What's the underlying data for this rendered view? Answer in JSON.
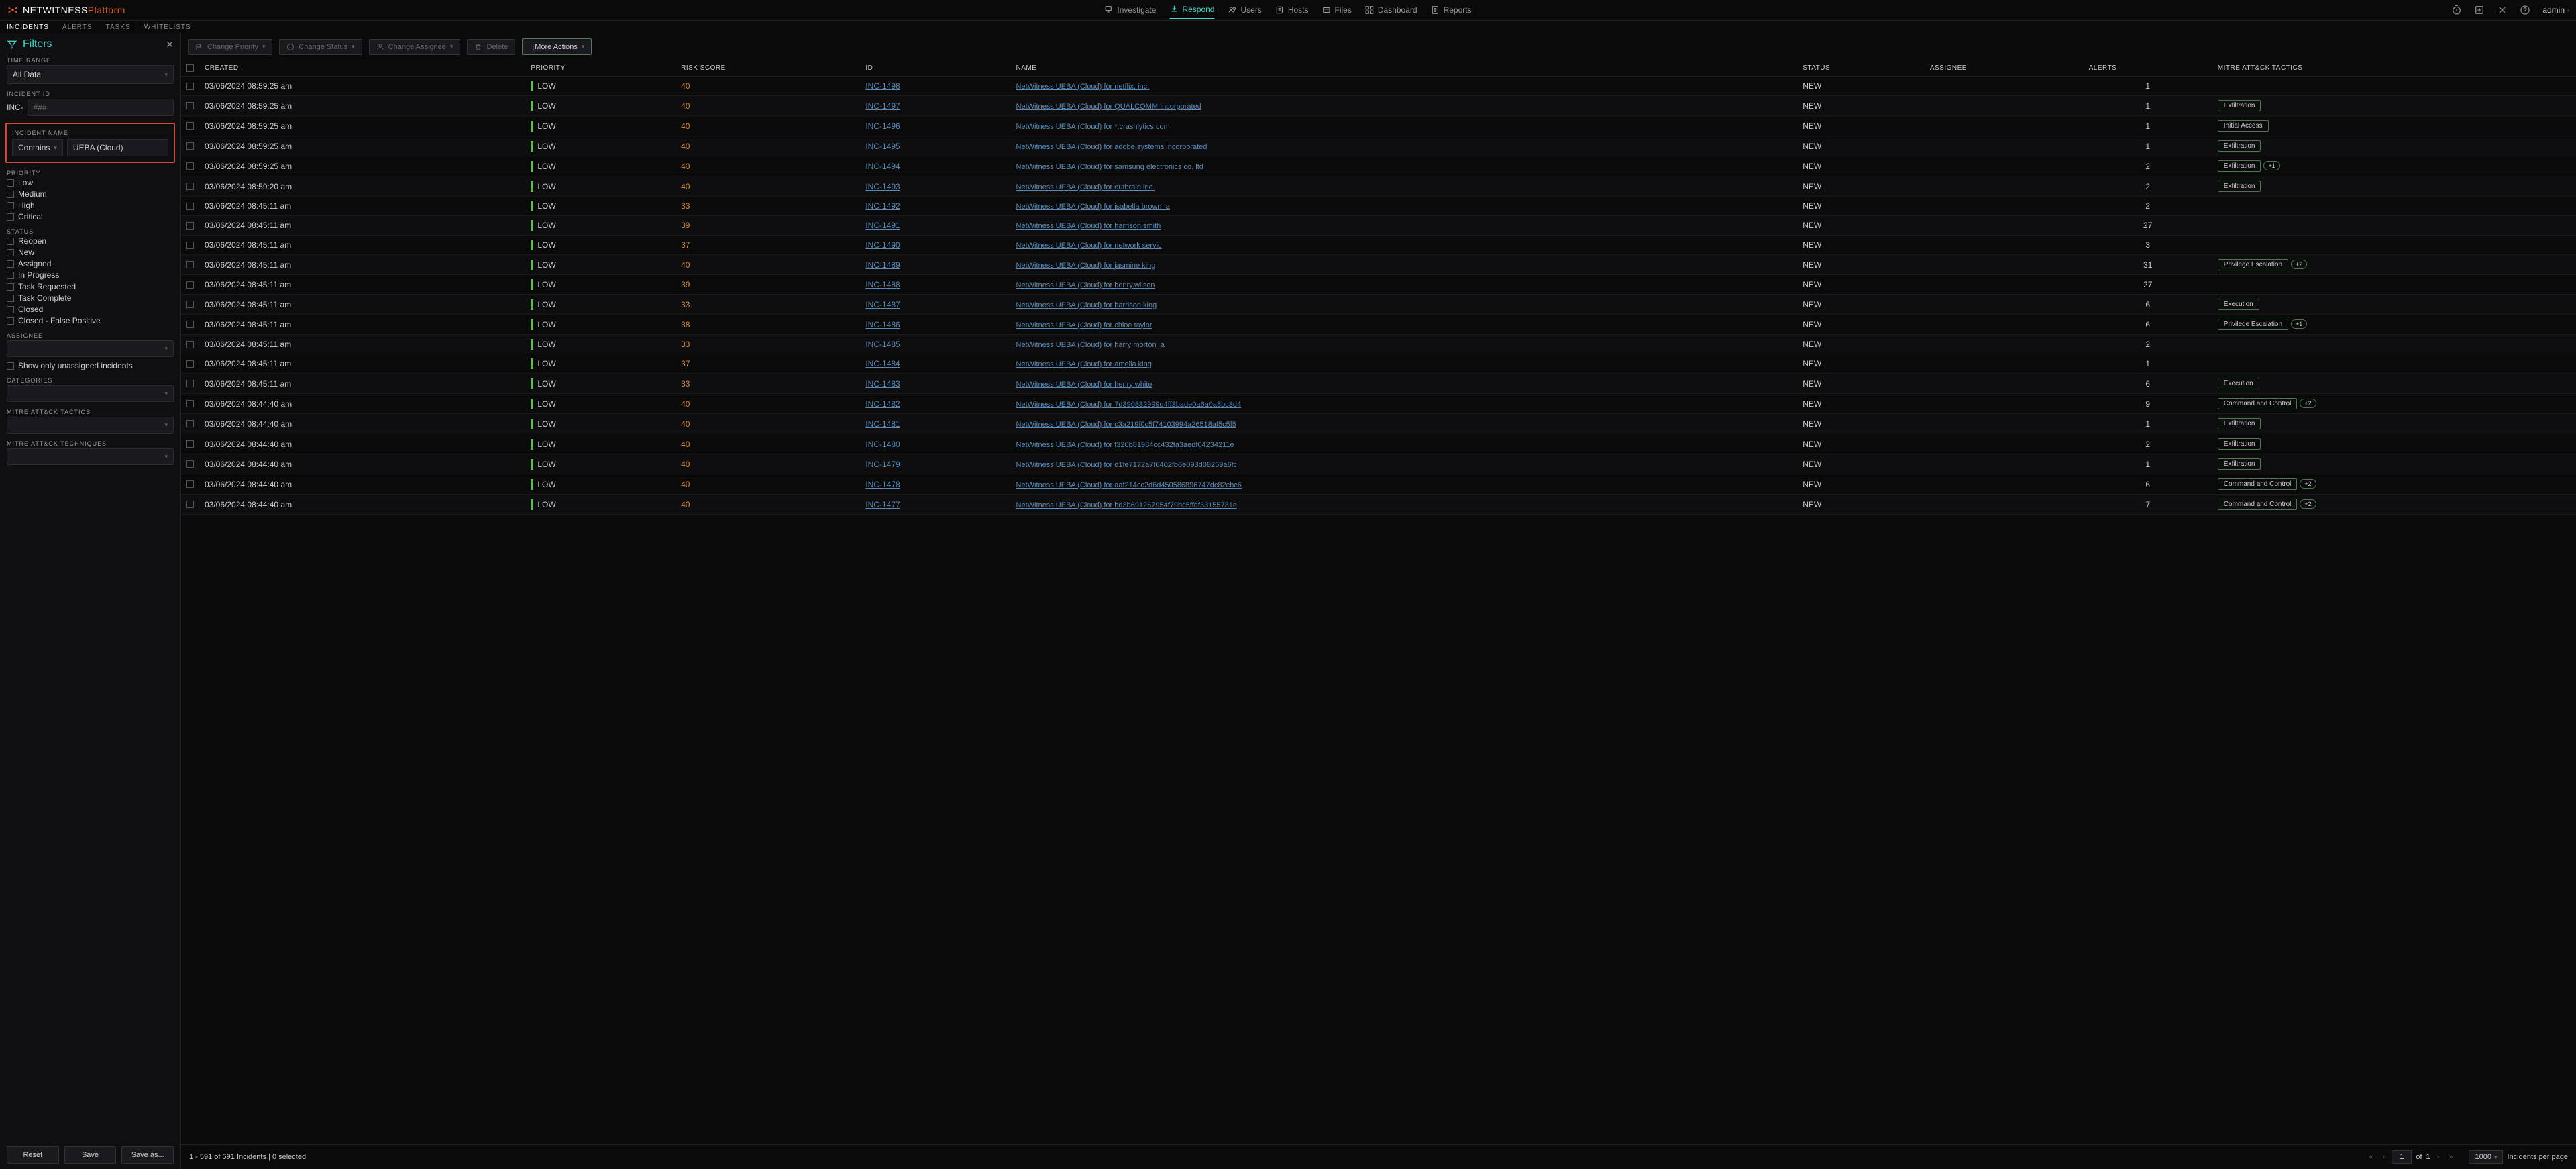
{
  "brand": {
    "net": "NETWITNESS",
    "platform": "Platform"
  },
  "main_nav": [
    {
      "label": "Investigate",
      "icon": "search"
    },
    {
      "label": "Respond",
      "icon": "respond",
      "active": true
    },
    {
      "label": "Users",
      "icon": "users"
    },
    {
      "label": "Hosts",
      "icon": "hosts"
    },
    {
      "label": "Files",
      "icon": "files"
    },
    {
      "label": "Dashboard",
      "icon": "dashboard"
    },
    {
      "label": "Reports",
      "icon": "reports"
    }
  ],
  "admin_label": "admin",
  "sub_nav": [
    {
      "label": "INCIDENTS",
      "active": true
    },
    {
      "label": "ALERTS"
    },
    {
      "label": "TASKS"
    },
    {
      "label": "WHITELISTS"
    }
  ],
  "filters": {
    "title": "Filters",
    "time_range_label": "TIME RANGE",
    "time_range_value": "All Data",
    "incident_id_label": "INCIDENT ID",
    "incident_id_prefix": "INC-",
    "incident_id_placeholder": "###",
    "incident_name_label": "INCIDENT NAME",
    "contains_label": "Contains",
    "name_value": "UEBA (Cloud)",
    "priority_label": "PRIORITY",
    "priority_options": [
      "Low",
      "Medium",
      "High",
      "Critical"
    ],
    "status_label": "STATUS",
    "status_options": [
      "Reopen",
      "New",
      "Assigned",
      "In Progress",
      "Task Requested",
      "Task Complete",
      "Closed",
      "Closed - False Positive"
    ],
    "assignee_label": "ASSIGNEE",
    "unassigned_label": "Show only unassigned incidents",
    "categories_label": "CATEGORIES",
    "mitre_tactics_label": "MITRE ATT&CK TACTICS",
    "mitre_tech_label": "MITRE ATT&CK TECHNIQUES",
    "reset": "Reset",
    "save": "Save",
    "save_as": "Save as..."
  },
  "actions": {
    "change_priority": "Change Priority",
    "change_status": "Change Status",
    "change_assignee": "Change Assignee",
    "delete": "Delete",
    "more": "More Actions"
  },
  "columns": [
    "",
    "CREATED",
    "PRIORITY",
    "RISK SCORE",
    "ID",
    "NAME",
    "STATUS",
    "ASSIGNEE",
    "ALERTS",
    "MITRE ATT&CK TACTICS"
  ],
  "rows": [
    {
      "created": "03/06/2024 08:59:25 am",
      "priority": "LOW",
      "risk": "40",
      "id": "INC-1498",
      "name": "NetWitness UEBA (Cloud) for netflix, inc.",
      "status": "NEW",
      "assignee": "",
      "alerts": "1",
      "tactic": ""
    },
    {
      "created": "03/06/2024 08:59:25 am",
      "priority": "LOW",
      "risk": "40",
      "id": "INC-1497",
      "name": "NetWitness UEBA (Cloud) for QUALCOMM Incorporated",
      "status": "NEW",
      "assignee": "",
      "alerts": "1",
      "tactic": "Exfiltration"
    },
    {
      "created": "03/06/2024 08:59:25 am",
      "priority": "LOW",
      "risk": "40",
      "id": "INC-1496",
      "name": "NetWitness UEBA (Cloud) for *.crashlytics.com",
      "status": "NEW",
      "assignee": "",
      "alerts": "1",
      "tactic": "Initial Access"
    },
    {
      "created": "03/06/2024 08:59:25 am",
      "priority": "LOW",
      "risk": "40",
      "id": "INC-1495",
      "name": "NetWitness UEBA (Cloud) for adobe systems incorporated",
      "status": "NEW",
      "assignee": "",
      "alerts": "1",
      "tactic": "Exfiltration"
    },
    {
      "created": "03/06/2024 08:59:25 am",
      "priority": "LOW",
      "risk": "40",
      "id": "INC-1494",
      "name": "NetWitness UEBA (Cloud) for samsung electronics co. ltd",
      "status": "NEW",
      "assignee": "",
      "alerts": "2",
      "tactic": "Exfiltration",
      "plus": "+1"
    },
    {
      "created": "03/06/2024 08:59:20 am",
      "priority": "LOW",
      "risk": "40",
      "id": "INC-1493",
      "name": "NetWitness UEBA (Cloud) for outbrain inc.",
      "status": "NEW",
      "assignee": "",
      "alerts": "2",
      "tactic": "Exfiltration"
    },
    {
      "created": "03/06/2024 08:45:11 am",
      "priority": "LOW",
      "risk": "33",
      "id": "INC-1492",
      "name": "NetWitness UEBA (Cloud) for isabella brown_a",
      "status": "NEW",
      "assignee": "",
      "alerts": "2",
      "tactic": ""
    },
    {
      "created": "03/06/2024 08:45:11 am",
      "priority": "LOW",
      "risk": "39",
      "id": "INC-1491",
      "name": "NetWitness UEBA (Cloud) for harrison smith",
      "status": "NEW",
      "assignee": "",
      "alerts": "27",
      "tactic": ""
    },
    {
      "created": "03/06/2024 08:45:11 am",
      "priority": "LOW",
      "risk": "37",
      "id": "INC-1490",
      "name": "NetWitness UEBA (Cloud) for network servic",
      "status": "NEW",
      "assignee": "",
      "alerts": "3",
      "tactic": ""
    },
    {
      "created": "03/06/2024 08:45:11 am",
      "priority": "LOW",
      "risk": "40",
      "id": "INC-1489",
      "name": "NetWitness UEBA (Cloud) for jasmine king",
      "status": "NEW",
      "assignee": "",
      "alerts": "31",
      "tactic": "Privilege Escalation",
      "plus": "+2"
    },
    {
      "created": "03/06/2024 08:45:11 am",
      "priority": "LOW",
      "risk": "39",
      "id": "INC-1488",
      "name": "NetWitness UEBA (Cloud) for henry.wilson",
      "status": "NEW",
      "assignee": "",
      "alerts": "27",
      "tactic": ""
    },
    {
      "created": "03/06/2024 08:45:11 am",
      "priority": "LOW",
      "risk": "33",
      "id": "INC-1487",
      "name": "NetWitness UEBA (Cloud) for harrison king",
      "status": "NEW",
      "assignee": "",
      "alerts": "6",
      "tactic": "Execution"
    },
    {
      "created": "03/06/2024 08:45:11 am",
      "priority": "LOW",
      "risk": "38",
      "id": "INC-1486",
      "name": "NetWitness UEBA (Cloud) for chloe taylor",
      "status": "NEW",
      "assignee": "",
      "alerts": "6",
      "tactic": "Privilege Escalation",
      "plus": "+1"
    },
    {
      "created": "03/06/2024 08:45:11 am",
      "priority": "LOW",
      "risk": "33",
      "id": "INC-1485",
      "name": "NetWitness UEBA (Cloud) for harry morton_a",
      "status": "NEW",
      "assignee": "",
      "alerts": "2",
      "tactic": ""
    },
    {
      "created": "03/06/2024 08:45:11 am",
      "priority": "LOW",
      "risk": "37",
      "id": "INC-1484",
      "name": "NetWitness UEBA (Cloud) for amelia.king",
      "status": "NEW",
      "assignee": "",
      "alerts": "1",
      "tactic": ""
    },
    {
      "created": "03/06/2024 08:45:11 am",
      "priority": "LOW",
      "risk": "33",
      "id": "INC-1483",
      "name": "NetWitness UEBA (Cloud) for henry white",
      "status": "NEW",
      "assignee": "",
      "alerts": "6",
      "tactic": "Execution"
    },
    {
      "created": "03/06/2024 08:44:40 am",
      "priority": "LOW",
      "risk": "40",
      "id": "INC-1482",
      "name": "NetWitness UEBA (Cloud) for 7d390832999d4ff3bade0a6a0a8bc3d4",
      "status": "NEW",
      "assignee": "",
      "alerts": "9",
      "tactic": "Command and Control",
      "plus": "+2"
    },
    {
      "created": "03/06/2024 08:44:40 am",
      "priority": "LOW",
      "risk": "40",
      "id": "INC-1481",
      "name": "NetWitness UEBA (Cloud) for c3a219f0c5f74103994a26518af5c5f5",
      "status": "NEW",
      "assignee": "",
      "alerts": "1",
      "tactic": "Exfiltration"
    },
    {
      "created": "03/06/2024 08:44:40 am",
      "priority": "LOW",
      "risk": "40",
      "id": "INC-1480",
      "name": "NetWitness UEBA (Cloud) for f320b81984cc432fa3aedf04234211e",
      "status": "NEW",
      "assignee": "",
      "alerts": "2",
      "tactic": "Exfiltration"
    },
    {
      "created": "03/06/2024 08:44:40 am",
      "priority": "LOW",
      "risk": "40",
      "id": "INC-1479",
      "name": "NetWitness UEBA (Cloud) for d1fe7172a7f6402fb6e093d08259a6fc",
      "status": "NEW",
      "assignee": "",
      "alerts": "1",
      "tactic": "Exfiltration"
    },
    {
      "created": "03/06/2024 08:44:40 am",
      "priority": "LOW",
      "risk": "40",
      "id": "INC-1478",
      "name": "NetWitness UEBA (Cloud) for aaf214cc2d6d450586896747dc82cbc6",
      "status": "NEW",
      "assignee": "",
      "alerts": "6",
      "tactic": "Command and Control",
      "plus": "+2"
    },
    {
      "created": "03/06/2024 08:44:40 am",
      "priority": "LOW",
      "risk": "40",
      "id": "INC-1477",
      "name": "NetWitness UEBA (Cloud) for bd3b691267954f79bc5ffdf33155731e",
      "status": "NEW",
      "assignee": "",
      "alerts": "7",
      "tactic": "Command and Control",
      "plus": "+2"
    }
  ],
  "footer": {
    "status": "1 - 591 of 591 Incidents | 0 selected",
    "page_current": "1",
    "of": "of",
    "page_total": "1",
    "per_page": "1000",
    "per_page_label": "Incidents per page"
  },
  "colors": {
    "accent": "#4dd0c8",
    "brand_orange": "#e05a2b",
    "priority_low": "#6bb35a",
    "risk": "#d68a3a",
    "link": "#5a8ab5",
    "highlight_border": "#d04a3a",
    "tactic_border": "#4a7a50"
  }
}
